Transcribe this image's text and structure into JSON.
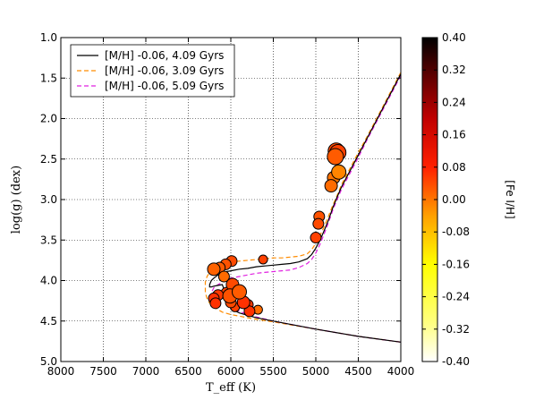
{
  "chart_data": {
    "type": "scatter",
    "title": "",
    "xlabel": "T_eff (K)",
    "ylabel": "log(g) (dex)",
    "xlim": [
      8000,
      4000
    ],
    "ylim": [
      5.0,
      1.0
    ],
    "x_ticks": [
      8000,
      7500,
      7000,
      6500,
      6000,
      5500,
      5000,
      4500,
      4000
    ],
    "x_tick_labels": [
      "8000",
      "7500",
      "7000",
      "6500",
      "6000",
      "5500",
      "5000",
      "4500",
      "4000"
    ],
    "y_ticks": [
      1.0,
      1.5,
      2.0,
      2.5,
      3.0,
      3.5,
      4.0,
      4.5,
      5.0
    ],
    "y_tick_labels": [
      "1.0",
      "1.5",
      "2.0",
      "2.5",
      "3.0",
      "3.5",
      "4.0",
      "4.5",
      "5.0"
    ],
    "grid": true,
    "legend_position": "top-left",
    "series": [
      {
        "name": "[M/H] -0.06, 4.09 Gyrs",
        "style": "solid",
        "color": "#000000",
        "x": [
          4000,
          4100,
          4200,
          4300,
          4400,
          4500,
          4600,
          4700,
          4750,
          4800,
          4850,
          4900,
          4950,
          5000,
          5050,
          5100,
          5200,
          5300,
          5400,
          5500,
          5600,
          5700,
          5800,
          5900,
          6000,
          6100,
          6150,
          6200,
          6230,
          6250,
          6250,
          6230,
          6200,
          6150,
          6100,
          6000,
          5900,
          5800,
          5700,
          5500,
          5000,
          4500,
          4000
        ],
        "y": [
          1.45,
          1.65,
          1.85,
          2.05,
          2.25,
          2.45,
          2.65,
          2.85,
          2.97,
          3.1,
          3.25,
          3.38,
          3.5,
          3.6,
          3.68,
          3.73,
          3.77,
          3.79,
          3.8,
          3.81,
          3.82,
          3.83,
          3.85,
          3.86,
          3.88,
          3.9,
          3.93,
          3.97,
          4.0,
          4.05,
          4.08,
          4.08,
          4.07,
          4.06,
          4.05,
          4.35,
          4.4,
          4.43,
          4.46,
          4.5,
          4.6,
          4.69,
          4.76
        ]
      },
      {
        "name": "[M/H] -0.06, 3.09 Gyrs",
        "style": "dashed",
        "color": "#ff8c00",
        "x": [
          4000,
          4100,
          4200,
          4300,
          4400,
          4500,
          4600,
          4700,
          4750,
          4800,
          4850,
          4900,
          4950,
          5000,
          5050,
          5100,
          5200,
          5300,
          5400,
          5500,
          5600,
          5700,
          5800,
          5900,
          6000,
          6100,
          6200,
          6250,
          6280,
          6300,
          6300,
          6280,
          6250,
          6200,
          6150,
          6100,
          6000,
          5900,
          5800,
          5700,
          5500,
          5000,
          4500,
          4000
        ],
        "y": [
          1.43,
          1.63,
          1.83,
          2.03,
          2.23,
          2.42,
          2.62,
          2.82,
          2.95,
          3.07,
          3.2,
          3.33,
          3.44,
          3.54,
          3.62,
          3.67,
          3.7,
          3.71,
          3.72,
          3.72,
          3.73,
          3.74,
          3.75,
          3.76,
          3.77,
          3.8,
          3.85,
          3.9,
          3.95,
          4.02,
          4.15,
          4.22,
          4.28,
          4.32,
          4.36,
          4.39,
          4.42,
          4.44,
          4.46,
          4.48,
          4.51,
          4.6,
          4.69,
          4.76
        ]
      },
      {
        "name": "[M/H] -0.06, 5.09 Gyrs",
        "style": "dashed",
        "color": "#e020e0",
        "x": [
          4000,
          4100,
          4200,
          4300,
          4400,
          4500,
          4600,
          4700,
          4750,
          4800,
          4850,
          4900,
          4950,
          5000,
          5050,
          5100,
          5200,
          5300,
          5400,
          5500,
          5600,
          5700,
          5800,
          5900,
          6000,
          6050,
          6100,
          6150,
          6200,
          6220,
          6230,
          6220,
          6200,
          6150,
          6100,
          6050,
          6000,
          5900,
          5800,
          5700,
          5500,
          5000,
          4500,
          4000
        ],
        "y": [
          1.47,
          1.67,
          1.87,
          2.07,
          2.27,
          2.48,
          2.68,
          2.88,
          3.0,
          3.13,
          3.28,
          3.42,
          3.55,
          3.66,
          3.74,
          3.79,
          3.84,
          3.87,
          3.88,
          3.89,
          3.9,
          3.91,
          3.93,
          3.95,
          3.97,
          3.99,
          4.02,
          4.05,
          4.09,
          4.13,
          4.17,
          4.2,
          4.21,
          4.2,
          4.19,
          4.17,
          4.3,
          4.38,
          4.42,
          4.45,
          4.5,
          4.6,
          4.69,
          4.76
        ]
      }
    ],
    "points": [
      {
        "teff": 4760,
        "logg": 2.4,
        "feh": 0.02,
        "size": 9
      },
      {
        "teff": 4740,
        "logg": 2.42,
        "feh": 0.03,
        "size": 9
      },
      {
        "teff": 4770,
        "logg": 2.47,
        "feh": 0.0,
        "size": 9
      },
      {
        "teff": 4730,
        "logg": 2.66,
        "feh": -0.05,
        "size": 8
      },
      {
        "teff": 4790,
        "logg": 2.73,
        "feh": -0.03,
        "size": 7
      },
      {
        "teff": 4820,
        "logg": 2.83,
        "feh": -0.02,
        "size": 7
      },
      {
        "teff": 4960,
        "logg": 3.21,
        "feh": 0.01,
        "size": 6
      },
      {
        "teff": 4970,
        "logg": 3.3,
        "feh": 0.02,
        "size": 6
      },
      {
        "teff": 5000,
        "logg": 3.47,
        "feh": 0.03,
        "size": 6
      },
      {
        "teff": 5620,
        "logg": 3.74,
        "feh": 0.03,
        "size": 5
      },
      {
        "teff": 5990,
        "logg": 3.76,
        "feh": 0.02,
        "size": 6
      },
      {
        "teff": 6060,
        "logg": 3.8,
        "feh": 0.01,
        "size": 6
      },
      {
        "teff": 6130,
        "logg": 3.84,
        "feh": 0.0,
        "size": 6
      },
      {
        "teff": 6200,
        "logg": 3.86,
        "feh": -0.01,
        "size": 7
      },
      {
        "teff": 6080,
        "logg": 3.95,
        "feh": -0.02,
        "size": 6
      },
      {
        "teff": 5980,
        "logg": 4.05,
        "feh": 0.02,
        "size": 7
      },
      {
        "teff": 6050,
        "logg": 4.15,
        "feh": 0.03,
        "size": 6
      },
      {
        "teff": 6010,
        "logg": 4.19,
        "feh": 0.01,
        "size": 8
      },
      {
        "teff": 5900,
        "logg": 4.14,
        "feh": 0.0,
        "size": 8
      },
      {
        "teff": 6150,
        "logg": 4.18,
        "feh": 0.04,
        "size": 6
      },
      {
        "teff": 6200,
        "logg": 4.22,
        "feh": 0.05,
        "size": 6
      },
      {
        "teff": 6180,
        "logg": 4.28,
        "feh": 0.05,
        "size": 6
      },
      {
        "teff": 6000,
        "logg": 4.27,
        "feh": 0.02,
        "size": 6
      },
      {
        "teff": 5850,
        "logg": 4.27,
        "feh": 0.05,
        "size": 7
      },
      {
        "teff": 5800,
        "logg": 4.3,
        "feh": 0.04,
        "size": 6
      },
      {
        "teff": 5780,
        "logg": 4.38,
        "feh": 0.05,
        "size": 6
      },
      {
        "teff": 5680,
        "logg": 4.36,
        "feh": -0.02,
        "size": 5
      },
      {
        "teff": 5950,
        "logg": 4.33,
        "feh": 0.03,
        "size": 5
      }
    ],
    "colorbar": {
      "label": "[Fe I/H]",
      "min": -0.4,
      "max": 0.4,
      "ticks": [
        "0.40",
        "0.32",
        "0.24",
        "0.16",
        "0.08",
        "0.00",
        "-0.08",
        "-0.16",
        "-0.24",
        "-0.32",
        "-0.40"
      ],
      "colormap": "hot_r"
    }
  }
}
